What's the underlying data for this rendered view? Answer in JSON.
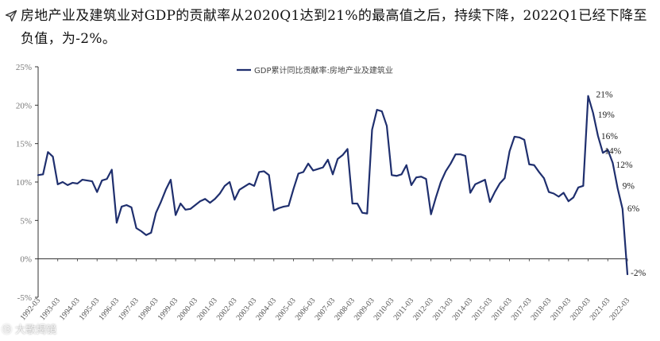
{
  "header": {
    "title": "房地产业及建筑业对GDP的贡献率从2020Q1达到21%的最高值之后，持续下降，2022Q1已经下降至负值，为-2%。"
  },
  "watermark": {
    "text": "⑬ 大歌揭镜"
  },
  "colors": {
    "series": "#1f2f6e",
    "axis": "#333333",
    "text": "#111111"
  },
  "chart_data": {
    "type": "line",
    "title": "",
    "xlabel": "",
    "ylabel": "",
    "ylim": [
      -5,
      25
    ],
    "y_ticks": [
      "25%",
      "20%",
      "15%",
      "10%",
      "5%",
      "0%",
      "-5%"
    ],
    "grid": false,
    "legend_position": "top-center",
    "x_tick_labels": [
      "1993-03",
      "1994-03",
      "1995-03",
      "1996-03",
      "1997-03",
      "1998-03",
      "1999-03",
      "2000-03",
      "2001-03",
      "2002-03",
      "2003-03",
      "2004-03",
      "2005-03",
      "2006-03",
      "2007-03",
      "2008-03",
      "2009-03",
      "2010-03",
      "2011-03",
      "2012-03",
      "2013-03",
      "2014-03",
      "2015-03",
      "2016-03",
      "2017-03",
      "2018-03",
      "2019-03",
      "2020-03",
      "2021-03",
      "2022-03"
    ],
    "x_start_label": "1992-03",
    "series": [
      {
        "name": "GDP累计同比贡献率:房地产业及建筑业",
        "unit": "%",
        "values": [
          10.9,
          11.0,
          13.9,
          13.3,
          9.7,
          10.0,
          9.6,
          9.9,
          9.8,
          10.3,
          10.2,
          10.1,
          8.7,
          10.2,
          10.4,
          11.6,
          4.7,
          6.8,
          7.0,
          6.7,
          4.0,
          3.6,
          3.1,
          3.4,
          6.0,
          7.4,
          9.0,
          10.3,
          5.7,
          7.2,
          6.4,
          6.5,
          7.0,
          7.5,
          7.8,
          7.3,
          7.8,
          8.5,
          9.5,
          10.0,
          7.7,
          9.0,
          9.4,
          9.8,
          9.5,
          11.3,
          11.4,
          10.9,
          6.3,
          6.6,
          6.8,
          6.9,
          9.1,
          11.1,
          11.3,
          12.4,
          11.5,
          11.7,
          11.9,
          12.9,
          11.0,
          13.0,
          13.5,
          14.3,
          7.2,
          7.2,
          6.0,
          5.9,
          16.8,
          19.4,
          19.2,
          17.3,
          10.9,
          10.8,
          11.0,
          12.2,
          9.6,
          10.6,
          10.7,
          10.4,
          5.8,
          8.0,
          10.0,
          11.4,
          12.4,
          13.6,
          13.6,
          13.4,
          8.6,
          9.7,
          10.0,
          10.3,
          7.4,
          8.7,
          9.8,
          10.5,
          14.0,
          15.9,
          15.8,
          15.5,
          12.3,
          12.2,
          11.3,
          10.5,
          8.7,
          8.5,
          8.1,
          8.6,
          7.5,
          8.0,
          9.3,
          9.5,
          21.2,
          19.0,
          16.0,
          13.8,
          14.2,
          12.5,
          9.2,
          6.5,
          -2.0
        ]
      }
    ],
    "annotations": [
      "21%",
      "19%",
      "16%",
      "14%",
      "12%",
      "9%",
      "6%",
      "-2%"
    ]
  }
}
